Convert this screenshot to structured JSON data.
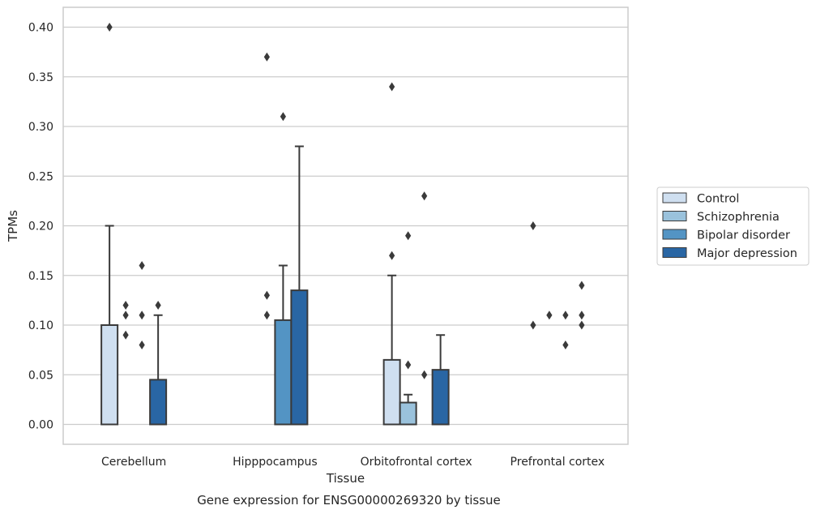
{
  "chart_data": {
    "type": "bar",
    "xlabel": "Tissue",
    "ylabel": "TPMs",
    "caption": "Gene expression for ENSG00000269320 by tissue",
    "categories": [
      "Cerebellum",
      "Hipppocampus",
      "Orbitofrontal cortex",
      "Prefrontal cortex"
    ],
    "ylim": [
      -0.02,
      0.42
    ],
    "yticks": [
      0.0,
      0.05,
      0.1,
      0.15,
      0.2,
      0.25,
      0.3,
      0.35,
      0.4
    ],
    "ytick_labels": [
      "0.00",
      "0.05",
      "0.10",
      "0.15",
      "0.20",
      "0.25",
      "0.30",
      "0.35",
      "0.40"
    ],
    "grid": "horizontal",
    "legend_position": "right",
    "series": [
      {
        "name": "Control",
        "color": "#cfdff0",
        "values": [
          0.1,
          0.0,
          0.065,
          0.0
        ],
        "whisker_high": [
          0.2,
          null,
          0.15,
          null
        ],
        "outliers": [
          [
            0.4
          ],
          [],
          [
            0.17,
            0.34
          ],
          [
            0.1,
            0.2
          ]
        ]
      },
      {
        "name": "Schizophrenia",
        "color": "#9ac2dc",
        "values": [
          0.0,
          0.0,
          0.022,
          0.0
        ],
        "whisker_high": [
          null,
          null,
          0.03,
          null
        ],
        "outliers": [
          [
            0.09,
            0.11,
            0.12
          ],
          [
            0.11,
            0.13,
            0.37
          ],
          [
            0.06,
            0.19
          ],
          [
            0.11
          ]
        ]
      },
      {
        "name": "Bipolar disorder",
        "color": "#5394c4",
        "values": [
          0.0,
          0.105,
          0.0,
          0.0
        ],
        "whisker_high": [
          null,
          0.16,
          null,
          null
        ],
        "outliers": [
          [
            0.08,
            0.11,
            0.16
          ],
          [
            0.31
          ],
          [
            0.05,
            0.23
          ],
          [
            0.08,
            0.11
          ]
        ]
      },
      {
        "name": "Major depression",
        "color": "#2966a4",
        "values": [
          0.045,
          0.135,
          0.055,
          0.0
        ],
        "whisker_high": [
          0.11,
          0.28,
          0.09,
          null
        ],
        "outliers": [
          [
            0.12
          ],
          [],
          [],
          [
            0.1,
            0.11,
            0.14
          ]
        ]
      }
    ]
  }
}
